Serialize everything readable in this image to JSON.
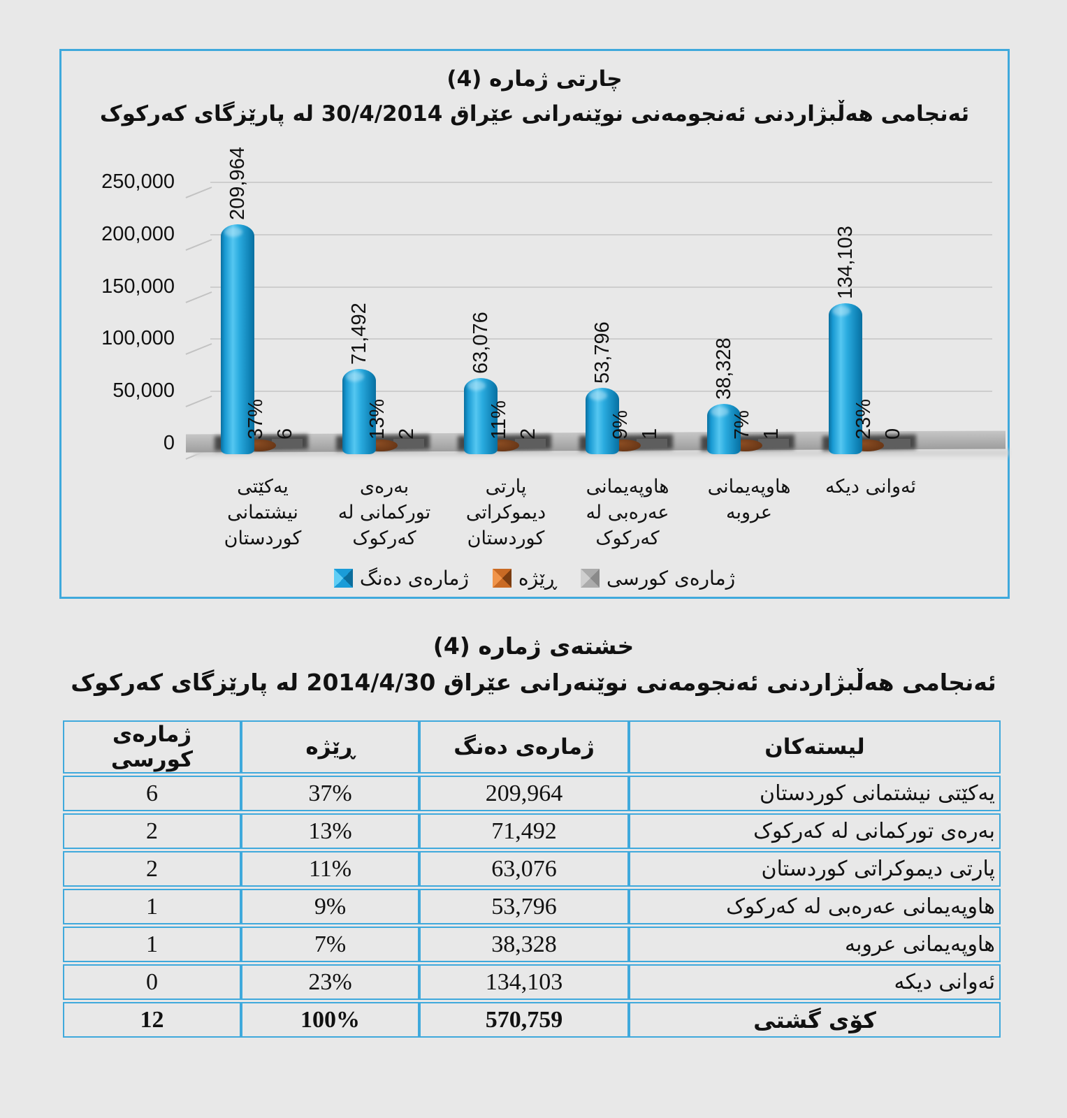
{
  "chart": {
    "title": "چارتی ژماره (4)",
    "subtitle": "ئەنجامی هەڵبژاردنی ئەنجومەنی نوێنەرانی عێراق  30/4/2014 له پارێزگای کەرکوک",
    "legend": [
      {
        "label": "ژمارەی دەنگ",
        "color": "#1a9cd8"
      },
      {
        "label": "ڕێژه",
        "color": "#c96a24"
      },
      {
        "label": "ژمارەی کورسی",
        "color": "#ababab"
      }
    ]
  },
  "chart_data": {
    "type": "bar",
    "title": "چارتی ژماره (4)",
    "subtitle": "ئەنجامی هەڵبژاردنی ئەنجومەنی نوێنەرانی عێراق  30/4/2014 له پارێزگای کەرکوک",
    "categories": [
      "یەکێتی نیشتمانی کوردستان",
      "بەرەی تورکمانی له کەرکوک",
      "پارتی دیموکراتی کوردستان",
      "هاوپەیمانی عەرەبی له کەرکوک",
      "هاوپەیمانی عروبه",
      "ئەوانی دیکه"
    ],
    "series": [
      {
        "name": "ژمارەی دەنگ",
        "type": "cylinder",
        "color": "#1a9cd8",
        "values": [
          209964,
          71492,
          63076,
          53796,
          38328,
          134103
        ],
        "labels": [
          "209,964",
          "71,492",
          "63,076",
          "53,796",
          "38,328",
          "134,103"
        ]
      },
      {
        "name": "ڕێژه",
        "type": "cylinder",
        "color": "#6f3c1b",
        "values": [
          37,
          13,
          11,
          9,
          7,
          23
        ],
        "labels": [
          "37%",
          "13%",
          "11%",
          "9%",
          "7%",
          "23%"
        ]
      },
      {
        "name": "ژمارەی کورسی",
        "type": "cylinder",
        "color": "#ababab",
        "values": [
          6,
          2,
          2,
          1,
          1,
          0
        ],
        "labels": [
          "6",
          "2",
          "2",
          "1",
          "1",
          "0"
        ]
      }
    ],
    "ylim": [
      0,
      250000
    ],
    "yticks": [
      {
        "value": 250000,
        "label": "250,000"
      },
      {
        "value": 200000,
        "label": "200,000"
      },
      {
        "value": 150000,
        "label": "150,000"
      },
      {
        "value": 100000,
        "label": "100,000"
      },
      {
        "value": 50000,
        "label": "50,000"
      },
      {
        "value": 0,
        "label": "0"
      }
    ],
    "grid": true,
    "legend_position": "bottom"
  },
  "table": {
    "title": "خشتەی ژماره (4)",
    "subtitle": "ئەنجامی هەڵبژاردنی ئەنجومەنی نوێنەرانی عێراق  2014/4/30 له پارێزگای کەرکوک",
    "headers": [
      "لیستەکان",
      "ژمارەی دەنگ",
      "ڕێژه",
      "ژمارەی کورسی"
    ],
    "rows": [
      {
        "name": "یەکێتی نیشتمانی کوردستان",
        "votes": "209,964",
        "pct": "37%",
        "seats": "6"
      },
      {
        "name": "بەرەی تورکمانی له کەرکوک",
        "votes": "71,492",
        "pct": "13%",
        "seats": "2"
      },
      {
        "name": "پارتی دیموکراتی کوردستان",
        "votes": "63,076",
        "pct": "11%",
        "seats": "2"
      },
      {
        "name": "هاوپەیمانی عەرەبی له کەرکوک",
        "votes": "53,796",
        "pct": "9%",
        "seats": "1"
      },
      {
        "name": "هاوپەیمانی عروبه",
        "votes": "38,328",
        "pct": "7%",
        "seats": "1"
      },
      {
        "name": "ئەوانی دیکه",
        "votes": "134,103",
        "pct": "23%",
        "seats": "0"
      }
    ],
    "total": {
      "name": "کۆی گشتی",
      "votes": "570,759",
      "pct": "100%",
      "seats": "12"
    }
  },
  "colors": {
    "border": "#3fa9dc",
    "bar_blue": "#1a9cd8",
    "pct_brown": "#6f3c1b",
    "seat_gray": "#ababab",
    "background": "#e8e8e8"
  }
}
